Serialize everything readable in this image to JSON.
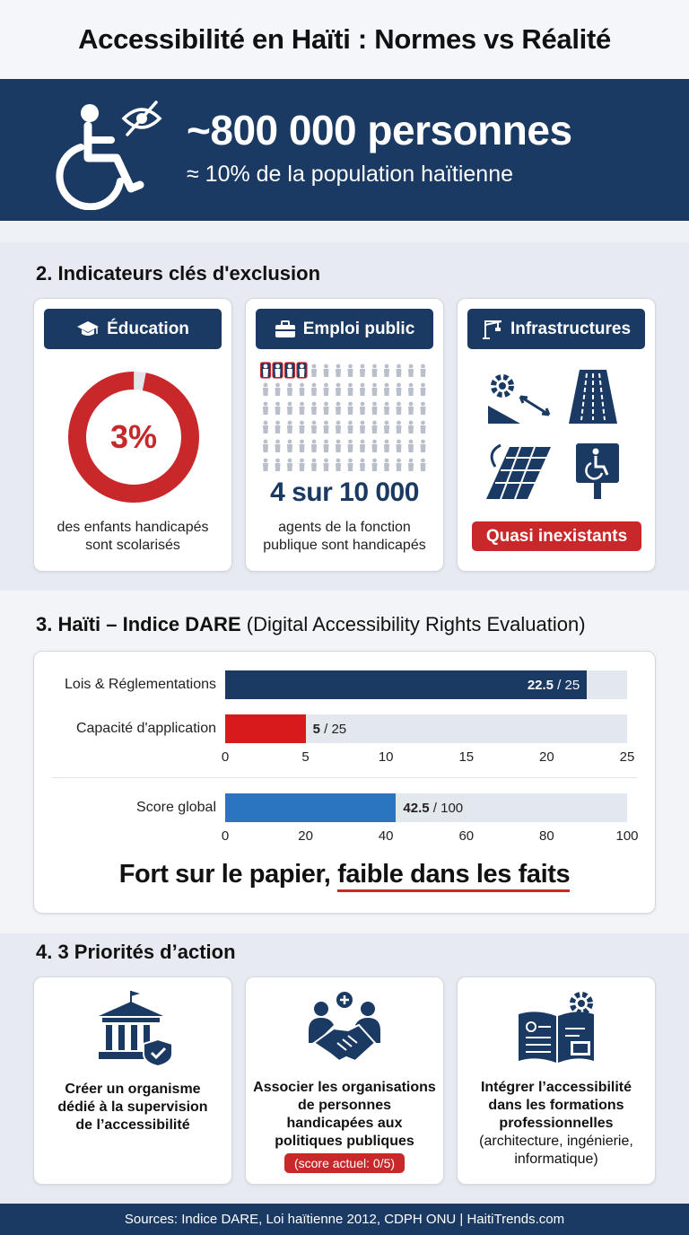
{
  "title": "Accessibilité en Haïti : Normes vs Réalité",
  "banner": {
    "headline": "~800 000 personnes",
    "subline": "≈ 10% de la population haïtienne",
    "icons": [
      "wheelchair-icon",
      "eye-slash-icon"
    ]
  },
  "section2": {
    "title": "2.  Indicateurs clés d'exclusion",
    "cards": [
      {
        "label": "Éducation",
        "icon": "graduation-cap-icon",
        "value": "3%",
        "percent": 3,
        "caption_line1": "des enfants handicapés",
        "caption_line2": "sont scolarisés"
      },
      {
        "label": "Emploi public",
        "icon": "briefcase-icon",
        "value": "4 sur 10 000",
        "caption_line1": "agents de la fonction",
        "caption_line2": "publique sont handicapés"
      },
      {
        "label": "Infrastructures",
        "icon": "crane-icon",
        "badge": "Quasi inexistants"
      }
    ]
  },
  "section3": {
    "title_bold": "3.  Haïti – Indice DARE",
    "title_rest": "(Digital Accessibility Rights Evaluation)",
    "chart_data": [
      {
        "type": "bar",
        "orientation": "horizontal",
        "categories": [
          "Lois & Réglementations",
          "Capacité d'application"
        ],
        "values": [
          22.5,
          5
        ],
        "value_labels": [
          "22.5",
          "5"
        ],
        "denominator_label": "/ 25",
        "xlim": [
          0,
          25
        ],
        "xticks": [
          0,
          5,
          10,
          15,
          20,
          25
        ],
        "colors": [
          "#1b3a63",
          "#d71a1a"
        ]
      },
      {
        "type": "bar",
        "orientation": "horizontal",
        "categories": [
          "Score global"
        ],
        "values": [
          42.5
        ],
        "value_labels": [
          "42.5"
        ],
        "denominator_label": "/ 100",
        "xlim": [
          0,
          100
        ],
        "xticks": [
          0,
          20,
          40,
          60,
          80,
          100
        ],
        "colors": [
          "#2a74c0"
        ]
      }
    ],
    "slogan_part1": "Fort sur le papier, ",
    "slogan_part2": "faible dans les faits"
  },
  "section4": {
    "title": "4.  3 Priorités d’action",
    "items": [
      {
        "icon": "government-building-icon",
        "lines": [
          "Créer un organisme",
          "dédié à la supervision",
          "de l’accessibilité"
        ]
      },
      {
        "icon": "handshake-icon",
        "lines": [
          "Associer les organisations",
          "de personnes",
          "handicapées aux",
          "politiques publiques"
        ],
        "badge": "(score actuel: 0/5)"
      },
      {
        "icon": "book-gear-icon",
        "lines": [
          "Intégrer l’accessibilité",
          "dans les formations",
          "professionnelles"
        ],
        "extra": "(architecture, ingénierie,",
        "extra2": "informatique)"
      }
    ]
  },
  "footer": "Sources: Indice DARE, Loi haïtienne 2012, CDPH ONU | HaitiTrends.com",
  "colors": {
    "navy": "#1b3a63",
    "red": "#d71a1a",
    "blue": "#2a74c0",
    "track": "#e3e7ee"
  }
}
